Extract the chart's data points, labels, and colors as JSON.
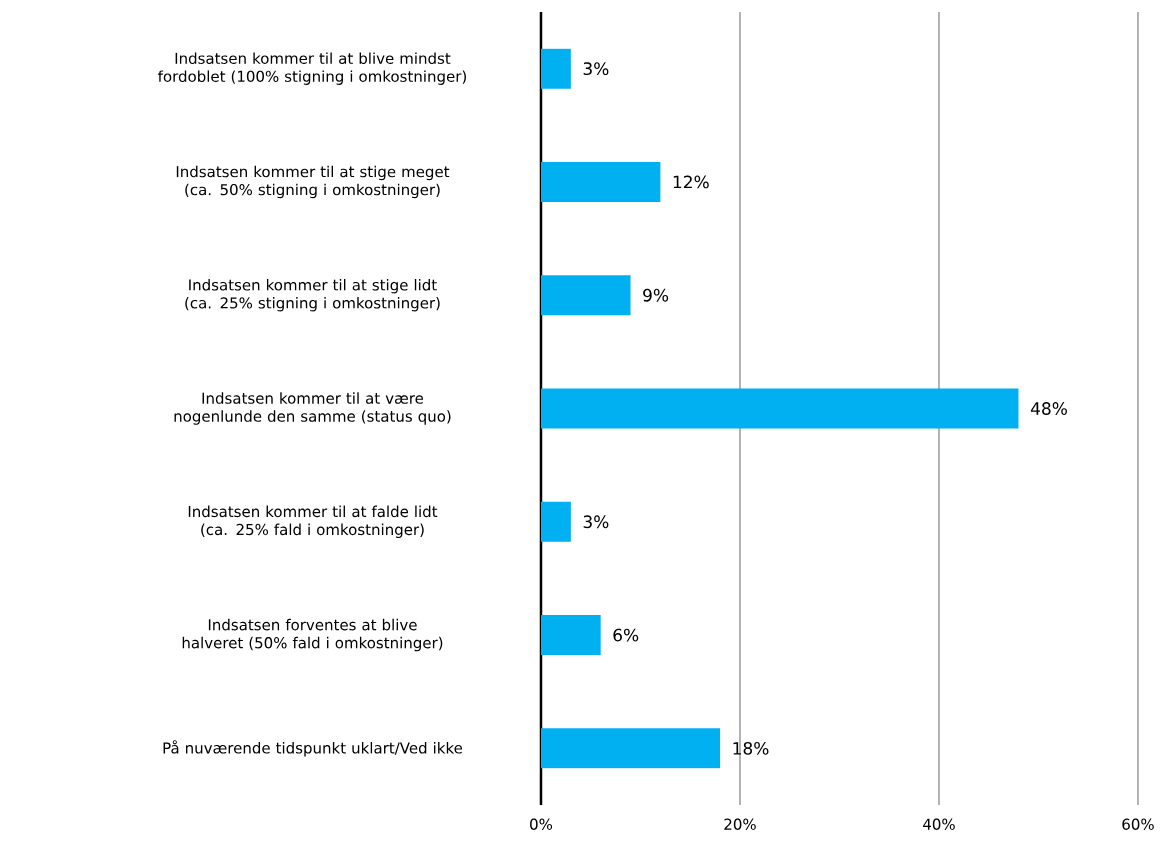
{
  "chart_data": {
    "type": "bar",
    "orientation": "horizontal",
    "categories": [
      "Indsatsen kommer til at blive mindst fordoblet (100% stigning i omkostninger)",
      "Indsatsen kommer til at stige meget (ca. 50% stigning i omkostninger)",
      "Indsatsen kommer til at stige lidt (ca. 25% stigning i omkostninger)",
      "Indsatsen kommer til at være nogenlunde den samme (status quo)",
      "Indsatsen kommer til at falde lidt (ca. 25% fald i omkostninger)",
      "Indsatsen forventes at blive halveret (50% fald i omkostninger)",
      "På nuværende tidspunkt uklart/Ved ikke"
    ],
    "values": [
      3,
      12,
      9,
      48,
      3,
      6,
      18
    ],
    "value_labels": [
      "3%",
      "12%",
      "9%",
      "48%",
      "3%",
      "6%",
      "18%"
    ],
    "color": "#00b0f0",
    "xlim": [
      0,
      60
    ],
    "xticks": [
      {
        "value": 0,
        "label": "0%"
      },
      {
        "value": 20,
        "label": "20%"
      },
      {
        "value": 40,
        "label": "40%"
      },
      {
        "value": 60,
        "label": "60%"
      }
    ],
    "grid": "x"
  }
}
